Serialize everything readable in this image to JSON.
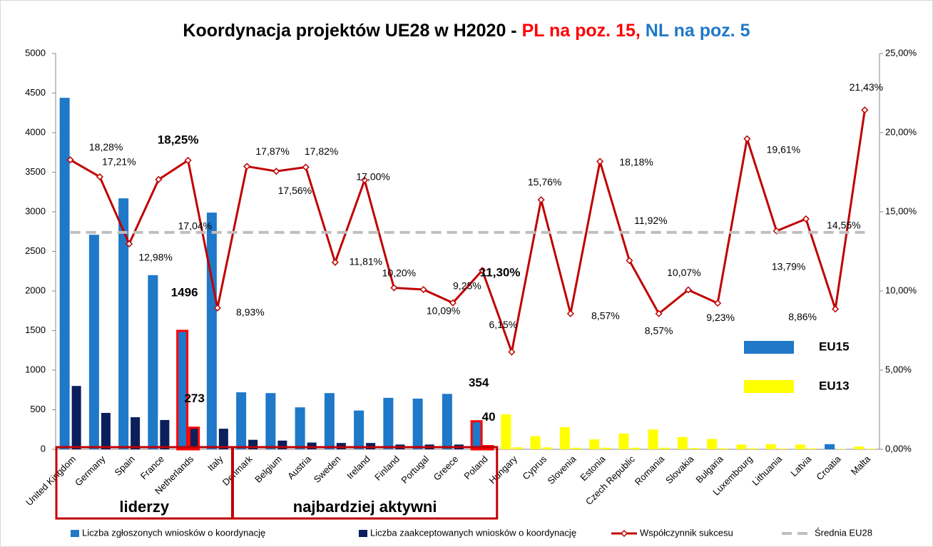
{
  "chart_data": {
    "type": "combo",
    "title": [
      {
        "text": "Koordynacja projektów UE28 w H2020 - ",
        "color": "#000000"
      },
      {
        "text": "PL na poz. 15,",
        "color": "#ff0000"
      },
      {
        "text": " NL na poz. 5",
        "color": "#1f78c8"
      }
    ],
    "categories": [
      "United Kingdom",
      "Germany",
      "Spain",
      "France",
      "Netherlands",
      "Italy",
      "Denmark",
      "Belgium",
      "Austria",
      "Sweden",
      "Ireland",
      "Finland",
      "Portugal",
      "Greece",
      "Poland",
      "Hungary",
      "Cyprus",
      "Slovenia",
      "Estonia",
      "Czech Republic",
      "Romania",
      "Slovakia",
      "Bulgaria",
      "Luxembourg",
      "Lithuania",
      "Latvia",
      "Croatia",
      "Malta"
    ],
    "series": [
      {
        "name": "Liczba zgłoszonych wniosków o koordynację",
        "kind": "bar",
        "color": "#1f78c8",
        "colors": [
          "#1f78c8",
          "#1f78c8",
          "#1f78c8",
          "#1f78c8",
          "#1f78c8",
          "#1f78c8",
          "#1f78c8",
          "#1f78c8",
          "#1f78c8",
          "#1f78c8",
          "#1f78c8",
          "#1f78c8",
          "#1f78c8",
          "#1f78c8",
          "#1f78c8",
          "#ffff00",
          "#ffff00",
          "#ffff00",
          "#ffff00",
          "#ffff00",
          "#ffff00",
          "#ffff00",
          "#ffff00",
          "#ffff00",
          "#ffff00",
          "#ffff00",
          "#1f78c8",
          "#ffff00"
        ],
        "values": [
          4440,
          2710,
          3170,
          2200,
          1496,
          2990,
          720,
          710,
          530,
          710,
          490,
          650,
          640,
          700,
          354,
          440,
          165,
          280,
          125,
          200,
          250,
          155,
          130,
          60,
          65,
          60,
          65,
          35
        ],
        "value_labels": [
          null,
          null,
          null,
          null,
          "1496",
          null,
          null,
          null,
          null,
          null,
          null,
          null,
          null,
          null,
          "354",
          null,
          null,
          null,
          null,
          null,
          null,
          null,
          null,
          null,
          null,
          null,
          null,
          null
        ]
      },
      {
        "name": "Liczba zaakceptowanych wniosków o koordynację",
        "kind": "bar",
        "color": "#0a1f5c",
        "colors": [
          "#0a1f5c",
          "#0a1f5c",
          "#0a1f5c",
          "#0a1f5c",
          "#0a1f5c",
          "#0a1f5c",
          "#0a1f5c",
          "#0a1f5c",
          "#0a1f5c",
          "#0a1f5c",
          "#0a1f5c",
          "#0a1f5c",
          "#0a1f5c",
          "#0a1f5c",
          "#0a1f5c",
          "#ffff00",
          "#ffff00",
          "#ffff00",
          "#ffff00",
          "#ffff00",
          "#ffff00",
          "#ffff00",
          "#ffff00",
          "#ffff00",
          "#ffff00",
          "#ffff00",
          "#ffff00",
          "#ffff00"
        ],
        "values": [
          800,
          460,
          405,
          370,
          273,
          260,
          120,
          110,
          85,
          80,
          80,
          60,
          60,
          60,
          40,
          25,
          25,
          20,
          20,
          20,
          20,
          15,
          12,
          12,
          10,
          10,
          5,
          7
        ],
        "value_labels": [
          null,
          null,
          null,
          null,
          "273",
          null,
          null,
          null,
          null,
          null,
          null,
          null,
          null,
          null,
          "40",
          null,
          null,
          null,
          null,
          null,
          null,
          null,
          null,
          null,
          null,
          null,
          null,
          null
        ]
      },
      {
        "name": "Współczynnik sukcesu",
        "kind": "line",
        "axis": "y2",
        "color": "#c00000",
        "values": [
          18.28,
          17.21,
          12.98,
          17.04,
          18.25,
          8.93,
          17.87,
          17.56,
          17.82,
          11.81,
          17.0,
          10.2,
          10.09,
          9.25,
          11.3,
          6.15,
          15.76,
          8.57,
          18.18,
          11.92,
          8.57,
          10.07,
          9.23,
          19.61,
          13.79,
          14.55,
          8.86,
          21.43
        ],
        "value_labels": [
          "18,28%",
          "17,21%",
          "12,98%",
          "17,04%",
          "18,25%",
          "8,93%",
          "17,87%",
          "17,56%",
          "17,82%",
          "11,81%",
          "17,00%",
          "10,20%",
          "10,09%",
          "9,25%",
          "11,30%",
          "6,15%",
          "15,76%",
          "8,57%",
          "18,18%",
          "11,92%",
          "8,57%",
          "10,07%",
          "9,23%",
          "19,61%",
          "13,79%",
          "14,55%",
          "8,86%",
          "21,43%"
        ]
      },
      {
        "name": "Średnia EU28",
        "kind": "dashed",
        "axis": "y2",
        "color": "#bfbfbf",
        "values": [
          13.7,
          13.7,
          13.7,
          13.7,
          13.7,
          13.7,
          13.7,
          13.7,
          13.7,
          13.7,
          13.7,
          13.7,
          13.7,
          13.7,
          13.7,
          13.7,
          13.7,
          13.7,
          13.7,
          13.7,
          13.7,
          13.7,
          13.7,
          13.7,
          13.7,
          13.7,
          13.7,
          13.7
        ]
      }
    ],
    "highlighted": [
      "Netherlands",
      "Poland"
    ],
    "highlight_color": "#ff0000",
    "groups": [
      {
        "label": "liderzy",
        "from": "United Kingdom",
        "to": "Italy"
      },
      {
        "label": "najbardziej aktywni",
        "from": "Denmark",
        "to": "Poland"
      }
    ],
    "group_color": "#c00000",
    "group_label_color": "#1f3c8c",
    "key": [
      {
        "label": "EU15",
        "color": "#1f78c8"
      },
      {
        "label": "EU13",
        "color": "#ffff00"
      }
    ],
    "ylim": [
      0,
      5000
    ],
    "yticks": [
      0,
      500,
      1000,
      1500,
      2000,
      2500,
      3000,
      3500,
      4000,
      4500,
      5000
    ],
    "y2lim": [
      0,
      25
    ],
    "y2ticks": [
      {
        "value": 0,
        "label": "0,00%"
      },
      {
        "value": 5,
        "label": "5,00%"
      },
      {
        "value": 10,
        "label": "10,00%"
      },
      {
        "value": 15,
        "label": "15,00%"
      },
      {
        "value": 20,
        "label": "20,00%"
      },
      {
        "value": 25,
        "label": "25,00%"
      }
    ]
  }
}
